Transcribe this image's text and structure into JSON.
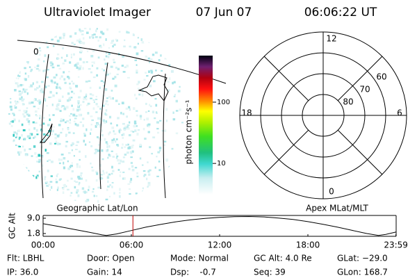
{
  "header": {
    "title": "Ultraviolet Imager",
    "date": "07 Jun 07",
    "time": "06:06:22 UT"
  },
  "map": {
    "label": "0"
  },
  "colorbar": {
    "label": "photon cm⁻²s⁻¹",
    "log_scale": true,
    "lim": [
      3.1,
      575
    ],
    "ticks": [
      10,
      100
    ]
  },
  "polar": {
    "rlim": [
      90,
      50
    ],
    "lat_ticks": [
      80,
      70,
      60
    ],
    "mlt_ticks": [
      12,
      18,
      6,
      0
    ]
  },
  "timeline": {
    "left_label": "Geographic Lat/Lon",
    "right_label": "Apex MLat/MLT",
    "ylabel": "GC Alt",
    "xlim": [
      0,
      24
    ],
    "xticks": [
      {
        "value": 0,
        "label": "00:00"
      },
      {
        "value": 6,
        "label": "06:00"
      },
      {
        "value": 12,
        "label": "12:00"
      },
      {
        "value": 18,
        "label": "18:00"
      },
      {
        "value": 23.983,
        "label": "23:59"
      }
    ],
    "ylim": [
      0.5,
      10.3
    ],
    "yticks": [
      {
        "value": 9,
        "label": "9.0"
      },
      1.8
    ],
    "marker_time": 6.106,
    "marker_color": "#c00000",
    "color": "#000000",
    "x": [
      0,
      1,
      2,
      3,
      4,
      4.3,
      5,
      6,
      7,
      8,
      9,
      10,
      11,
      12,
      13,
      14,
      15,
      16,
      17,
      18,
      19,
      20,
      21,
      22,
      22.8,
      23.3,
      23.98
    ],
    "values": [
      6.4,
      5.2,
      3.9,
      2.6,
      1.2,
      0.9,
      1.6,
      3.2,
      4.8,
      6.1,
      7.3,
      8.2,
      8.9,
      9.4,
      9.7,
      9.8,
      9.6,
      9.1,
      8.4,
      7.4,
      6.2,
      4.8,
      3.3,
      1.8,
      0.9,
      1.4,
      2.5
    ]
  },
  "info": [
    [
      "Flt: LBHL",
      "Door: Open",
      "Mode: Normal",
      "GC Alt: 4.0 Re",
      "GLat: −29.0"
    ],
    [
      "IP: 36.0",
      "Gain: 14",
      "Dsp:    -0.7",
      "Seq: 39",
      "GLon: 168.7"
    ]
  ]
}
